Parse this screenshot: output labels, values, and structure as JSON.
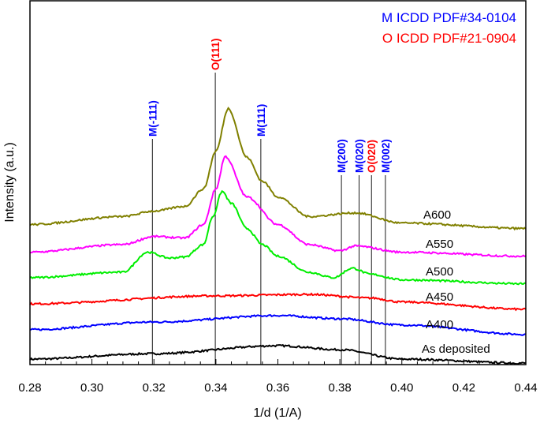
{
  "chart_data": {
    "type": "line",
    "xlabel": "1/d (1/A)",
    "ylabel": "Intensity (a.u.)",
    "xlim": [
      0.28,
      0.44
    ],
    "ylim": [
      0,
      100
    ],
    "xticks": [
      "0.28",
      "0.30",
      "0.32",
      "0.34",
      "0.36",
      "0.38",
      "0.40",
      "0.42",
      "0.44"
    ],
    "grid": false,
    "legend": {
      "placement": "top-right",
      "entries": [
        {
          "text": "M ICDD PDF#34-0104",
          "color": "#0000ff"
        },
        {
          "text": "O ICDD PDF#21-0904",
          "color": "#ff0000"
        }
      ]
    },
    "reference_lines": [
      {
        "label": "M(-111)",
        "x": 0.3195,
        "color": "#0000ff"
      },
      {
        "label": "O(111)",
        "x": 0.3398,
        "color": "#ff0000"
      },
      {
        "label": "M(111)",
        "x": 0.3545,
        "color": "#0000ff"
      },
      {
        "label": "M(200)",
        "x": 0.3805,
        "color": "#0000ff"
      },
      {
        "label": "M(020)",
        "x": 0.3862,
        "color": "#0000ff"
      },
      {
        "label": "O(020)",
        "x": 0.3902,
        "color": "#ff0000"
      },
      {
        "label": "M(002)",
        "x": 0.3947,
        "color": "#0000ff"
      }
    ],
    "series": [
      {
        "name": "As deposited",
        "color": "#000000",
        "x": [
          0.28,
          0.32,
          0.36,
          0.38,
          0.4,
          0.44
        ],
        "y": [
          1.5,
          3.0,
          5.2,
          4.1,
          1.5,
          0.4
        ]
      },
      {
        "name": "A400",
        "color": "#0000ff",
        "x": [
          0.28,
          0.32,
          0.36,
          0.38,
          0.4,
          0.44
        ],
        "y": [
          9.6,
          11.7,
          13.5,
          12.6,
          10.9,
          8.3
        ]
      },
      {
        "name": "A450",
        "color": "#ff0000",
        "x": [
          0.28,
          0.34,
          0.37,
          0.39,
          0.4,
          0.44
        ],
        "y": [
          16.7,
          18.9,
          19.3,
          18.3,
          17.2,
          15.2
        ]
      },
      {
        "name": "A500",
        "color": "#00ee00",
        "x": [
          0.28,
          0.31,
          0.318,
          0.325,
          0.33,
          0.336,
          0.339,
          0.342,
          0.345,
          0.35,
          0.355,
          0.36,
          0.37,
          0.378,
          0.384,
          0.39,
          0.4,
          0.44
        ],
        "y": [
          23.9,
          25.4,
          30.9,
          29.3,
          29.6,
          33.0,
          40.7,
          47.6,
          44.3,
          37.4,
          33.0,
          29.8,
          25.4,
          23.9,
          26.5,
          24.8,
          23.3,
          22.2
        ]
      },
      {
        "name": "A550",
        "color": "#ff00ff",
        "x": [
          0.28,
          0.31,
          0.32,
          0.33,
          0.336,
          0.34,
          0.343,
          0.35,
          0.36,
          0.37,
          0.38,
          0.385,
          0.4,
          0.44
        ],
        "y": [
          30.9,
          33.0,
          35.2,
          34.8,
          38.5,
          48.3,
          57.2,
          46.1,
          38.5,
          33.0,
          31.3,
          32.6,
          30.9,
          29.8
        ]
      },
      {
        "name": "A600",
        "color": "#808000",
        "x": [
          0.28,
          0.31,
          0.32,
          0.33,
          0.336,
          0.34,
          0.344,
          0.35,
          0.355,
          0.36,
          0.37,
          0.385,
          0.4,
          0.44
        ],
        "y": [
          38.5,
          40.7,
          42.2,
          43.5,
          48.3,
          58.7,
          70.4,
          57.0,
          50.4,
          46.1,
          40.7,
          41.7,
          38.9,
          37.4
        ]
      }
    ]
  }
}
